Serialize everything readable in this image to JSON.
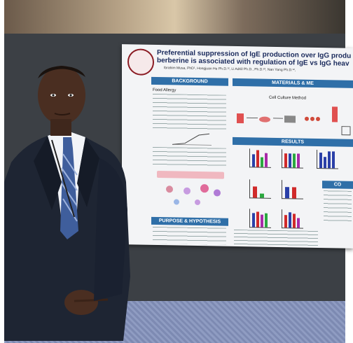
{
  "poster": {
    "title_line1": "Preferential suppression of IgE production over IgG produ",
    "title_line2": "berberine is associated with regulation of IgE vs IgG heav",
    "authors": "Ibrahim Musa, PhD¹, Hongjuan He Ph.D.¹², Li Adriil Ph.D., Ph.D.²³, Nan Yang Ph.D.¹²,",
    "sections": {
      "background": "BACKGROUND",
      "materials": "MATERIALS & ME",
      "results": "RESULTS",
      "purpose": "PURPOSE & HYPOTHESIS",
      "conclusion": "CO"
    },
    "food_allergy_heading": "Food Allergy",
    "cell_culture_heading": "Cell Culture Method"
  },
  "colors": {
    "section_header": "#2f6fa8",
    "title": "#1a2a5c",
    "suit": "#1e2533"
  },
  "icons": [
    "university-seal-icon"
  ]
}
